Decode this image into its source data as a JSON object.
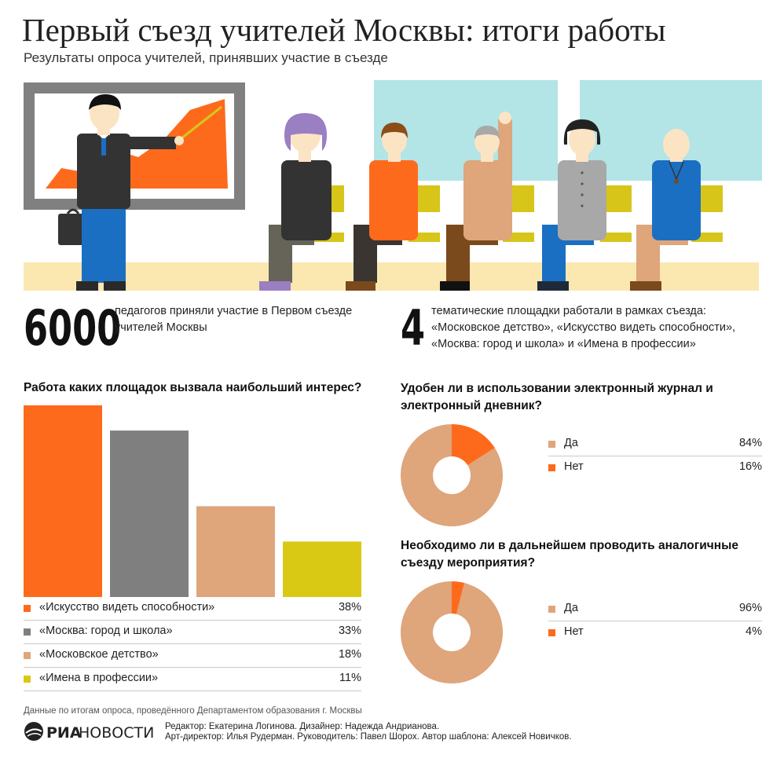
{
  "title": "Первый съезд учителей Москвы: итоги работы",
  "subtitle": "Результаты опроса учителей, принявших участие в съезде",
  "stat1": {
    "number": "6000",
    "text": "педагогов приняли участие в Первом съезде учителей Москвы"
  },
  "stat2": {
    "number": "4",
    "text": "тематические площадки работали в рамках съезда: «Московское детство», «Искусство видеть способности», «Москва: город и школа» и «Имена в профессии»"
  },
  "colors": {
    "orange": "#fe6a1c",
    "gray": "#7f7f7f",
    "tan": "#dfa57b",
    "yellow": "#dac914"
  },
  "chart_data": [
    {
      "type": "bar",
      "title": "Работа каких площадок вызвала наибольший интерес?",
      "categories": [
        "«Искусство видеть способности»",
        "«Москва: город и школа»",
        "«Московское детство»",
        "«Имена в профессии»"
      ],
      "values": [
        38,
        33,
        18,
        11
      ],
      "value_labels": [
        "38%",
        "33%",
        "18%",
        "11%"
      ],
      "colors": [
        "#fe6a1c",
        "#7f7f7f",
        "#dfa57b",
        "#dac914"
      ]
    },
    {
      "type": "pie",
      "title": "Удобен ли в использовании электронный журнал и электронный дневник?",
      "categories": [
        "Да",
        "Нет"
      ],
      "values": [
        84,
        16
      ],
      "value_labels": [
        "84%",
        "16%"
      ],
      "colors": [
        "#dfa57b",
        "#fe6a1c"
      ]
    },
    {
      "type": "pie",
      "title": "Необходимо ли в дальнейшем проводить аналогичные съезду мероприятия?",
      "categories": [
        "Да",
        "Нет"
      ],
      "values": [
        96,
        4
      ],
      "value_labels": [
        "96%",
        "4%"
      ],
      "colors": [
        "#dfa57b",
        "#fe6a1c"
      ]
    }
  ],
  "footnote": "Данные по итогам опроса, проведённого Департаментом образования г. Москвы",
  "logo": {
    "part1": "РИА",
    "part2": "НОВОСТИ"
  },
  "credits": {
    "line1": "Редактор: Екатерина Логинова. Дизайнер: Надежда Андрианова.",
    "line2": "Арт-директор: Илья Рудерман. Руководитель: Павел Шорох. Автор шаблона: Алексей Новичков."
  }
}
